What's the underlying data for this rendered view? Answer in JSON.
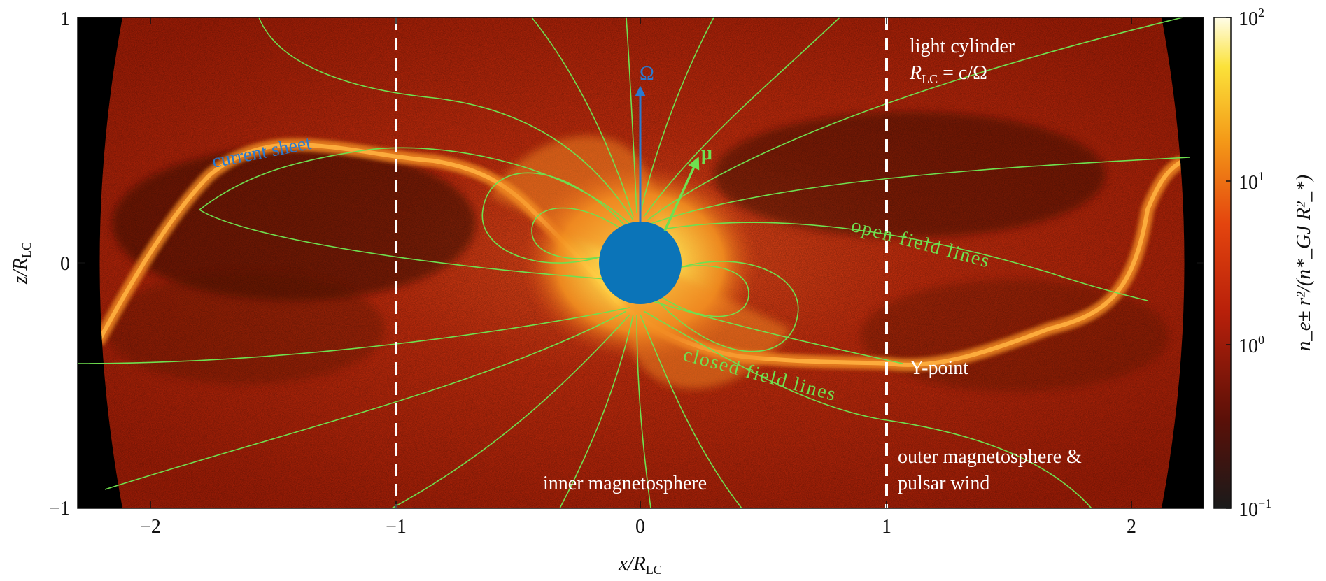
{
  "figure": {
    "axes": {
      "x_label_main": "x/R",
      "x_label_sub": "LC",
      "y_label_main": "z/R",
      "y_label_sub": "LC",
      "x_ticks": [
        "−2",
        "−1",
        "0",
        "1",
        "2"
      ],
      "y_ticks": [
        "1",
        "0",
        "−1"
      ]
    },
    "colorbar": {
      "label": "n_e± r²/(n*_GJ R²_*)",
      "ticks": [
        "10",
        "10",
        "10",
        "10"
      ],
      "tick_exponents": [
        "2",
        "1",
        "0",
        "−1"
      ],
      "scale": "log",
      "range": [
        0.1,
        100
      ]
    },
    "annotations": {
      "omega": "Ω",
      "mu": "μ",
      "current_sheet": "current sheet",
      "open_field_lines": "open field lines",
      "closed_field_lines": "closed field lines",
      "y_point": "Y-point",
      "light_cylinder_line1": "light cylinder",
      "light_cylinder_line2": "R",
      "light_cylinder_line2_sub": "LC",
      "light_cylinder_line2_rest": " = c/Ω",
      "inner_magnetosphere": "inner magnetosphere",
      "outer_line1": "outer magnetosphere &",
      "outer_line2": "pulsar wind"
    },
    "colors": {
      "background_density": "#b8280c",
      "current_sheet": "#ff9a2a",
      "star": "#0b74b8",
      "field_lines": "#7ee05a",
      "omega_arrow": "#2a7ad0",
      "light_cylinder": "#ffffff"
    }
  }
}
